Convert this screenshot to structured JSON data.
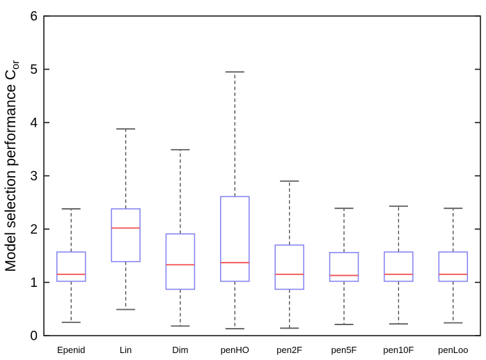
{
  "figure": {
    "background_color": "#ffffff",
    "ylabel_text": "Model selection performance C",
    "ylabel_subscript": "or",
    "colors": {
      "box_edge": "#8181f0",
      "median": "#ef5050",
      "whisker": "#474747",
      "whisker_cap": "#5f5f5f",
      "axis": "#1a1a1a",
      "text": "#000000"
    }
  },
  "chart_data": {
    "type": "boxplot",
    "title": "",
    "xlabel": "",
    "ylabel": "Model selection performance C_or",
    "ylim": [
      0,
      6
    ],
    "yticks": [
      0,
      1,
      2,
      3,
      4,
      5,
      6
    ],
    "grid": false,
    "legend": null,
    "categories": [
      "Epenid",
      "Lin",
      "Dim",
      "penHO",
      "pen2F",
      "pen5F",
      "pen10F",
      "penLoo"
    ],
    "boxes": [
      {
        "label": "Epenid",
        "whisker_low": 0.25,
        "q1": 1.02,
        "median": 1.15,
        "q3": 1.57,
        "whisker_high": 2.38
      },
      {
        "label": "Lin",
        "whisker_low": 0.49,
        "q1": 1.39,
        "median": 2.02,
        "q3": 2.38,
        "whisker_high": 3.88
      },
      {
        "label": "Dim",
        "whisker_low": 0.18,
        "q1": 0.87,
        "median": 1.33,
        "q3": 1.91,
        "whisker_high": 3.49
      },
      {
        "label": "penHO",
        "whisker_low": 0.13,
        "q1": 1.02,
        "median": 1.37,
        "q3": 2.61,
        "whisker_high": 4.95
      },
      {
        "label": "pen2F",
        "whisker_low": 0.14,
        "q1": 0.87,
        "median": 1.15,
        "q3": 1.7,
        "whisker_high": 2.9
      },
      {
        "label": "pen5F",
        "whisker_low": 0.21,
        "q1": 1.02,
        "median": 1.13,
        "q3": 1.56,
        "whisker_high": 2.39
      },
      {
        "label": "pen10F",
        "whisker_low": 0.22,
        "q1": 1.02,
        "median": 1.15,
        "q3": 1.57,
        "whisker_high": 2.43
      },
      {
        "label": "penLoo",
        "whisker_low": 0.24,
        "q1": 1.02,
        "median": 1.15,
        "q3": 1.57,
        "whisker_high": 2.39
      }
    ]
  }
}
